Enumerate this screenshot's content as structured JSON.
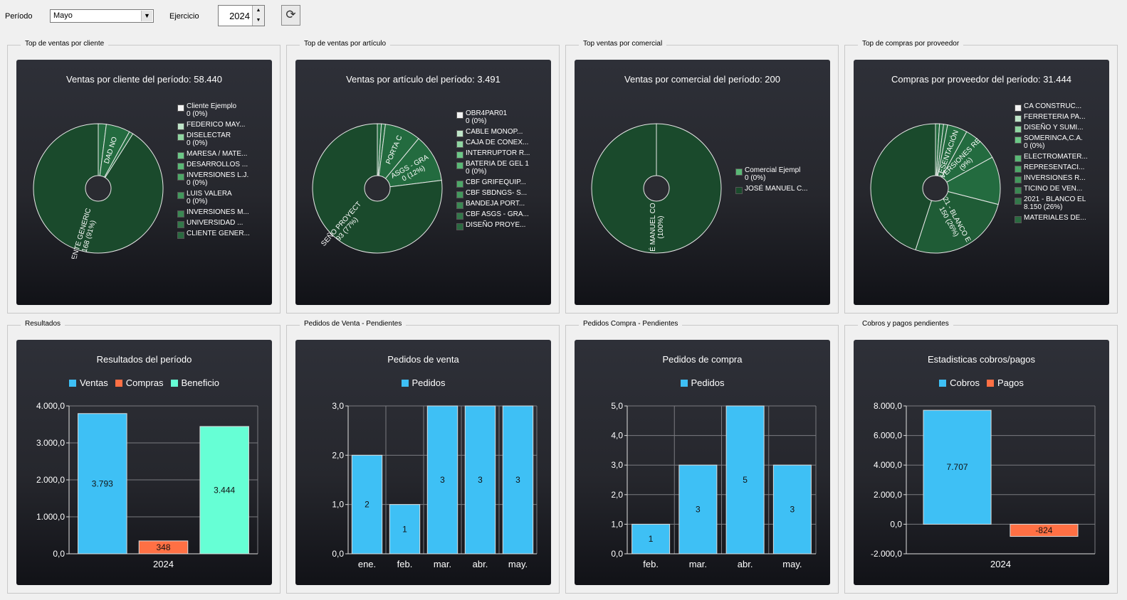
{
  "toolbar": {
    "periodo_label": "Período",
    "periodo_value": "Mayo",
    "ejercicio_label": "Ejercicio",
    "ejercicio_value": "2024"
  },
  "groups": {
    "g1": "Top de ventas por cliente",
    "g2": "Top de ventas por artículo",
    "g3": "Top ventas por comercial",
    "g4": "Top de compras por proveedor",
    "g5": "Resultados",
    "g6": "Pedidos de Venta - Pendientes",
    "g7": "Pedidos Compra - Pendientes",
    "g8": "Cobros y pagos pendientes"
  },
  "colors": {
    "slice_dark": "#1a4a2c",
    "slice_mid": "#236b3f",
    "bar_blue": "#3ec0f5",
    "bar_orange": "#ff7044",
    "bar_mint": "#66ffd5"
  },
  "chart_data": [
    {
      "type": "pie",
      "title": "Ventas por cliente del período: 58.440",
      "legend": [
        {
          "label": "Cliente Ejemplo",
          "sub": "0 (0%)",
          "color": "#f3f3f3"
        },
        {
          "label": "FEDERICO MAY...",
          "sub": "",
          "color": "#bfe5c9"
        },
        {
          "label": "DISELECTAR",
          "sub": "0 (0%)",
          "color": "#8fd6a2"
        },
        {
          "label": "MARESA / MATE...",
          "sub": "",
          "color": "#6cc887"
        },
        {
          "label": "DESARROLLOS ...",
          "sub": "",
          "color": "#5ab876"
        },
        {
          "label": "INVERSIONES L.J.",
          "sub": "0 (0%)",
          "color": "#4da868"
        },
        {
          "label": "LUIS VALERA",
          "sub": "0 (0%)",
          "color": "#43985d"
        },
        {
          "label": "INVERSIONES M...",
          "sub": "",
          "color": "#3b8853"
        },
        {
          "label": "UNIVERSIDAD ...",
          "sub": "",
          "color": "#33784a"
        },
        {
          "label": "CLIENTE GENER...",
          "sub": "",
          "color": "#2a6a40"
        }
      ],
      "slices": [
        {
          "pct": 2,
          "color": "#236b3f",
          "label": "",
          "lw": "",
          "lpos": 0.7
        },
        {
          "pct": 6,
          "color": "#236b3f",
          "label": "DAD NO",
          "lw": "",
          "lpos": 0.62
        },
        {
          "pct": 1,
          "color": "#236b3f",
          "label": "",
          "lw": "",
          "lpos": 0.7
        },
        {
          "pct": 91,
          "color": "#1a4a2c",
          "label": "ENTE GENERIC",
          "lw": "168 (91%)",
          "lpos": 0.75
        }
      ]
    },
    {
      "type": "pie",
      "title": "Ventas por artículo del período: 3.491",
      "legend": [
        {
          "label": "OBR4PAR01",
          "sub": "0 (0%)",
          "color": "#f3f3f3"
        },
        {
          "label": "CABLE MONOP...",
          "sub": "",
          "color": "#bfe5c9"
        },
        {
          "label": "CAJA DE CONEX...",
          "sub": "",
          "color": "#8fd6a2"
        },
        {
          "label": "INTERRUPTOR R...",
          "sub": "",
          "color": "#6cc887"
        },
        {
          "label": "BATERIA DE GEL 1",
          "sub": "0 (0%)",
          "color": "#5ab876"
        },
        {
          "label": "CBF GRIFEQUIP...",
          "sub": "",
          "color": "#4da868"
        },
        {
          "label": "CBF SBDNGS- S...",
          "sub": "",
          "color": "#43985d"
        },
        {
          "label": "BANDEJA PORT...",
          "sub": "",
          "color": "#3b8853"
        },
        {
          "label": "CBF ASGS - GRA...",
          "sub": "",
          "color": "#33784a"
        },
        {
          "label": "DISEÑO PROYE...",
          "sub": "",
          "color": "#2a6a40"
        }
      ],
      "slices": [
        {
          "pct": 1,
          "color": "#236b3f",
          "label": "",
          "lw": "",
          "lpos": 0.7
        },
        {
          "pct": 1,
          "color": "#236b3f",
          "label": "",
          "lw": "",
          "lpos": 0.7
        },
        {
          "pct": 9,
          "color": "#236b3f",
          "label": "PORTA C",
          "lw": "",
          "lpos": 0.65
        },
        {
          "pct": 12,
          "color": "#236b3f",
          "label": "ASGS - GRA",
          "lw": "0 (12%)",
          "lpos": 0.6
        },
        {
          "pct": 77,
          "color": "#1a4a2c",
          "label": "SEÑO PROYECT",
          "lw": "93 (77%)",
          "lpos": 0.78
        }
      ]
    },
    {
      "type": "pie",
      "title": "Ventas por comercial del período: 200",
      "legend": [
        {
          "label": "Comercial Ejempl",
          "sub": "0 (0%)",
          "color": "#5ab876"
        },
        {
          "label": "JOSÉ MANUEL C...",
          "sub": "",
          "color": "#1a4a2c"
        }
      ],
      "slices": [
        {
          "pct": 100,
          "color": "#1a4a2c",
          "label": "É MANUEL CO",
          "lw": "(100%)",
          "lpos": 0.6
        }
      ]
    },
    {
      "type": "pie",
      "title": "Compras por proveedor del período: 31.444",
      "legend": [
        {
          "label": "CA CONSTRUC...",
          "sub": "",
          "color": "#f3f3f3"
        },
        {
          "label": "FERRETERIA PA...",
          "sub": "",
          "color": "#bfe5c9"
        },
        {
          "label": "DISEÑO Y SUMI...",
          "sub": "",
          "color": "#8fd6a2"
        },
        {
          "label": "SOMERINCA,C.A.",
          "sub": "0 (0%)",
          "color": "#6cc887"
        },
        {
          "label": "ELECTROMATER...",
          "sub": "",
          "color": "#5ab876"
        },
        {
          "label": "REPRESENTACI...",
          "sub": "",
          "color": "#4da868"
        },
        {
          "label": "INVERSIONES R...",
          "sub": "",
          "color": "#43985d"
        },
        {
          "label": "TICINO DE VEN...",
          "sub": "",
          "color": "#3b8853"
        },
        {
          "label": "2021 - BLANCO EL",
          "sub": "8.150 (26%)",
          "color": "#33784a"
        },
        {
          "label": "MATERIALES DE...",
          "sub": "",
          "color": "#2a6a40"
        }
      ],
      "slices": [
        {
          "pct": 1,
          "color": "#236b3f",
          "label": "",
          "lw": "",
          "lpos": 0.7
        },
        {
          "pct": 1,
          "color": "#236b3f",
          "label": "",
          "lw": "",
          "lpos": 0.7
        },
        {
          "pct": 1,
          "color": "#236b3f",
          "label": "",
          "lw": "",
          "lpos": 0.7
        },
        {
          "pct": 5,
          "color": "#236b3f",
          "label": "ESENTACIÓN",
          "lw": "",
          "lpos": 0.6
        },
        {
          "pct": 9,
          "color": "#236b3f",
          "label": "VERSIONES RE",
          "lw": "(9%)",
          "lpos": 0.6
        },
        {
          "pct": 12,
          "color": "#236b3f",
          "label": "",
          "lw": "",
          "lpos": 0.7
        },
        {
          "pct": 26,
          "color": "#1f5c36",
          "label": "021 - BLANCO E",
          "lw": "150 (26%)",
          "lpos": 0.55
        },
        {
          "pct": 45,
          "color": "#1a4a2c",
          "label": "",
          "lw": "",
          "lpos": 0.7
        }
      ]
    },
    {
      "type": "bar",
      "title": "Resultados del período",
      "categories": [
        "2024"
      ],
      "series": [
        {
          "name": "Ventas",
          "color": "#3ec0f5",
          "values": [
            3793
          ],
          "labels": [
            "3.793"
          ]
        },
        {
          "name": "Compras",
          "color": "#ff7044",
          "values": [
            348
          ],
          "labels": [
            "348"
          ]
        },
        {
          "name": "Beneficio",
          "color": "#66ffd5",
          "values": [
            3444
          ],
          "labels": [
            "3.444"
          ]
        }
      ],
      "ylim": [
        0,
        4000
      ],
      "yticks": [
        0,
        1000,
        2000,
        3000,
        4000
      ],
      "ytick_labels": [
        "0,0",
        "1.000,0",
        "2.000,0",
        "3.000,0",
        "4.000,0"
      ],
      "grouped": true
    },
    {
      "type": "bar",
      "title": "Pedidos de venta",
      "categories": [
        "ene.",
        "feb.",
        "mar.",
        "abr.",
        "may."
      ],
      "series": [
        {
          "name": "Pedidos",
          "color": "#3ec0f5",
          "values": [
            2,
            1,
            3,
            3,
            3
          ],
          "labels": [
            "2",
            "1",
            "3",
            "3",
            "3"
          ]
        }
      ],
      "ylim": [
        0,
        3
      ],
      "yticks": [
        0,
        1,
        2,
        3
      ],
      "ytick_labels": [
        "0,0",
        "1,0",
        "2,0",
        "3,0"
      ],
      "grouped": false
    },
    {
      "type": "bar",
      "title": "Pedidos de compra",
      "categories": [
        "feb.",
        "mar.",
        "abr.",
        "may."
      ],
      "series": [
        {
          "name": "Pedidos",
          "color": "#3ec0f5",
          "values": [
            1,
            3,
            5,
            3
          ],
          "labels": [
            "1",
            "3",
            "5",
            "3"
          ]
        }
      ],
      "ylim": [
        0,
        5
      ],
      "yticks": [
        0,
        1,
        2,
        3,
        4,
        5
      ],
      "ytick_labels": [
        "0,0",
        "1,0",
        "2,0",
        "3,0",
        "4,0",
        "5,0"
      ],
      "grouped": false
    },
    {
      "type": "bar",
      "title": "Estadisticas cobros/pagos",
      "categories": [
        "2024"
      ],
      "series": [
        {
          "name": "Cobros",
          "color": "#3ec0f5",
          "values": [
            7707
          ],
          "labels": [
            "7.707"
          ]
        },
        {
          "name": "Pagos",
          "color": "#ff7044",
          "values": [
            -824
          ],
          "labels": [
            "-824"
          ]
        }
      ],
      "ylim": [
        -2000,
        8000
      ],
      "yticks": [
        -2000,
        0,
        2000,
        4000,
        6000,
        8000
      ],
      "ytick_labels": [
        "-2.000,0",
        "0,0",
        "2.000,0",
        "4.000,0",
        "6.000,0",
        "8.000,0"
      ],
      "grouped": true
    }
  ]
}
